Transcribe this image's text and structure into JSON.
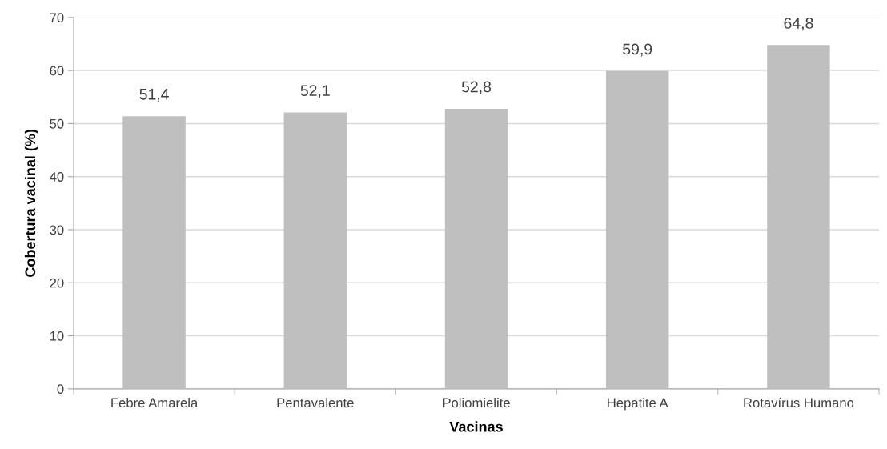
{
  "chart_data": {
    "type": "bar",
    "xlabel": "Vacinas",
    "ylabel": "Cobertura vacinal (%)",
    "categories": [
      "Febre Amarela",
      "Pentavalente",
      "Poliomielite",
      "Hepatite A",
      "Rotavírus Humano"
    ],
    "values": [
      51.4,
      52.1,
      52.8,
      59.9,
      64.8
    ],
    "value_labels": [
      "51,4",
      "52,1",
      "52,8",
      "59,9",
      "64,8"
    ],
    "color": "#bfbfbf",
    "ylim": [
      0,
      70
    ],
    "yticks": [
      0,
      10,
      20,
      30,
      40,
      50,
      60,
      70
    ],
    "grid": "y",
    "legend": false
  }
}
